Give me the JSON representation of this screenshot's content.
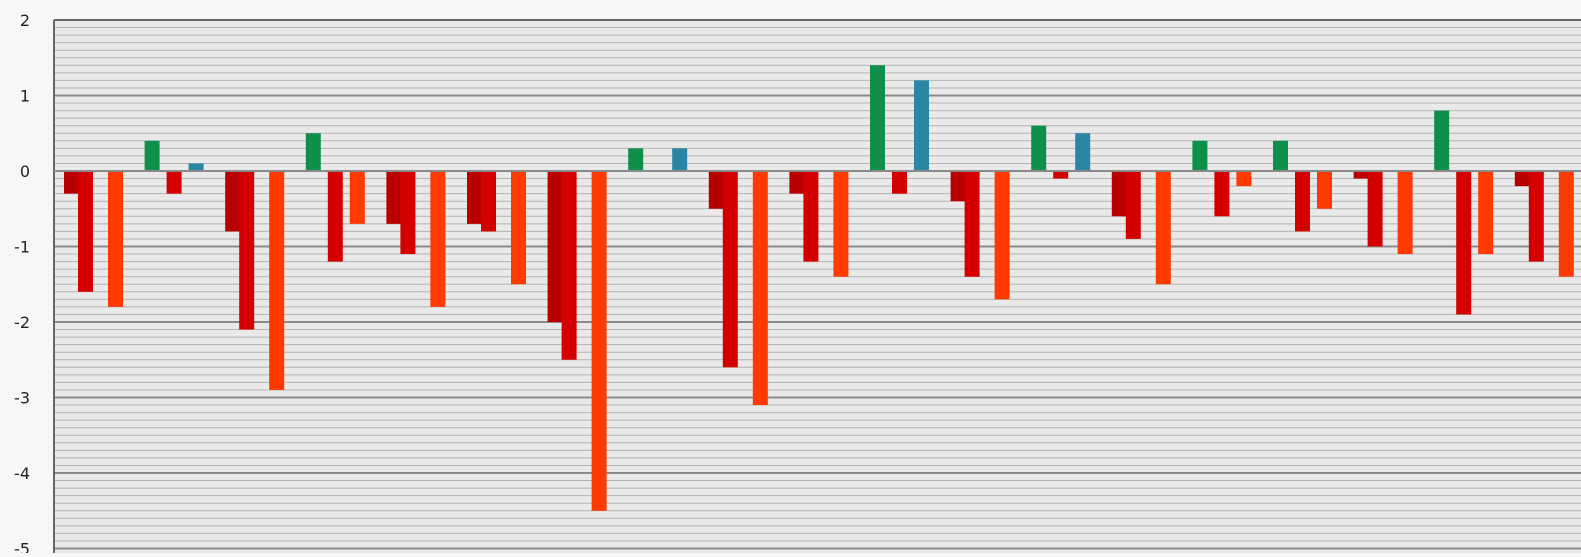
{
  "chart_data": {
    "type": "bar",
    "title": "",
    "xlabel": "",
    "ylabel": "",
    "ylim": [
      -5,
      2
    ],
    "yticks": [
      2,
      1,
      0,
      -1,
      -2,
      -3,
      -4,
      -5
    ],
    "ytick_labels": [
      "2",
      "1",
      "0",
      "-1",
      "-2",
      "-3",
      "-4",
      "-5"
    ],
    "grid": "horizontal",
    "grid_minor_step": 0.1,
    "legend": "none",
    "colors": {
      "dark_red": "#b80000",
      "red": "#d40000",
      "orange": "#ff3a00",
      "green": "#0e8f4a",
      "teal": "#2b86a3",
      "grid_major": "#8a8a8a",
      "grid_minor": "#b3b3b3",
      "plot_bg": "#e9e9e9",
      "axis_text": "#222222"
    },
    "groups": [
      {
        "bars": [
          {
            "value": -0.3,
            "color": "dark_red"
          },
          {
            "value": -1.6,
            "color": "red"
          },
          {
            "value": -1.8,
            "color": "orange"
          }
        ]
      },
      {
        "bars": [
          {
            "value": 0.4,
            "color": "green"
          },
          {
            "value": -0.3,
            "color": "red"
          },
          {
            "value": 0.1,
            "color": "teal"
          }
        ]
      },
      {
        "bars": [
          {
            "value": -0.8,
            "color": "dark_red"
          },
          {
            "value": -2.1,
            "color": "red"
          },
          {
            "value": -2.9,
            "color": "orange"
          }
        ]
      },
      {
        "bars": [
          {
            "value": 0.5,
            "color": "green"
          },
          {
            "value": -1.2,
            "color": "red"
          },
          {
            "value": -0.7,
            "color": "orange"
          }
        ]
      },
      {
        "bars": [
          {
            "value": -0.7,
            "color": "dark_red"
          },
          {
            "value": -1.1,
            "color": "red"
          },
          {
            "value": -1.8,
            "color": "orange"
          }
        ]
      },
      {
        "bars": [
          {
            "value": -0.7,
            "color": "dark_red"
          },
          {
            "value": -0.8,
            "color": "red"
          },
          {
            "value": -1.5,
            "color": "orange"
          }
        ]
      },
      {
        "bars": [
          {
            "value": -2.0,
            "color": "dark_red"
          },
          {
            "value": -2.5,
            "color": "red"
          },
          {
            "value": -4.5,
            "color": "orange"
          }
        ]
      },
      {
        "bars": [
          {
            "value": 0.3,
            "color": "green"
          },
          {
            "value": 0.3,
            "color": "teal"
          }
        ]
      },
      {
        "bars": [
          {
            "value": -0.5,
            "color": "dark_red"
          },
          {
            "value": -2.6,
            "color": "red"
          },
          {
            "value": -3.1,
            "color": "orange"
          }
        ]
      },
      {
        "bars": [
          {
            "value": -0.3,
            "color": "dark_red"
          },
          {
            "value": -1.2,
            "color": "red"
          },
          {
            "value": -1.4,
            "color": "orange"
          }
        ]
      },
      {
        "bars": [
          {
            "value": 1.4,
            "color": "green"
          },
          {
            "value": -0.3,
            "color": "red"
          },
          {
            "value": 1.2,
            "color": "teal"
          }
        ]
      },
      {
        "bars": [
          {
            "value": -0.4,
            "color": "dark_red"
          },
          {
            "value": -1.4,
            "color": "red"
          },
          {
            "value": -1.7,
            "color": "orange"
          }
        ]
      },
      {
        "bars": [
          {
            "value": 0.6,
            "color": "green"
          },
          {
            "value": -0.1,
            "color": "red"
          },
          {
            "value": 0.5,
            "color": "teal"
          }
        ]
      },
      {
        "bars": [
          {
            "value": -0.6,
            "color": "dark_red"
          },
          {
            "value": -0.9,
            "color": "red"
          },
          {
            "value": -1.5,
            "color": "orange"
          }
        ]
      },
      {
        "bars": [
          {
            "value": 0.4,
            "color": "green"
          },
          {
            "value": -0.6,
            "color": "red"
          },
          {
            "value": -0.2,
            "color": "orange"
          }
        ]
      },
      {
        "bars": [
          {
            "value": 0.4,
            "color": "green"
          },
          {
            "value": -0.8,
            "color": "red"
          },
          {
            "value": -0.5,
            "color": "orange"
          }
        ]
      },
      {
        "bars": [
          {
            "value": -0.1,
            "color": "dark_red"
          },
          {
            "value": -1.0,
            "color": "red"
          },
          {
            "value": -1.1,
            "color": "orange"
          }
        ]
      },
      {
        "bars": [
          {
            "value": 0.8,
            "color": "green"
          },
          {
            "value": -1.9,
            "color": "red"
          },
          {
            "value": -1.1,
            "color": "orange"
          }
        ]
      },
      {
        "bars": [
          {
            "value": -0.2,
            "color": "dark_red"
          },
          {
            "value": -1.2,
            "color": "red"
          },
          {
            "value": -1.4,
            "color": "orange"
          }
        ]
      }
    ]
  }
}
